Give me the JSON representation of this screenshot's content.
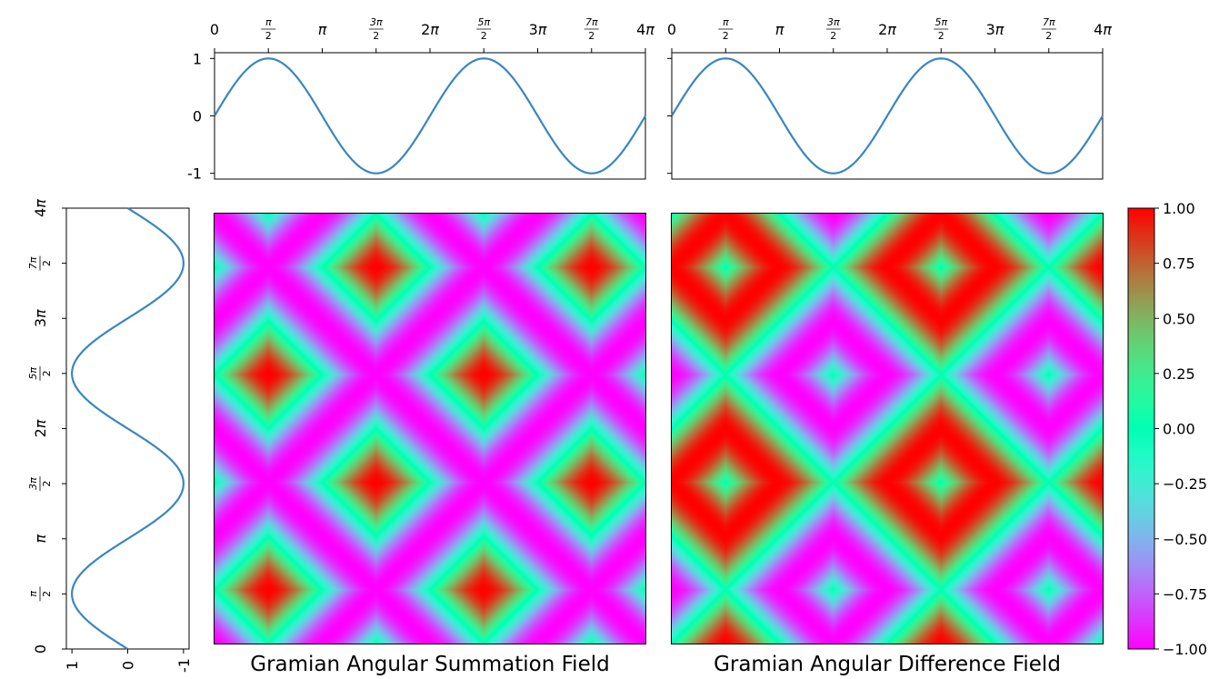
{
  "figure": {
    "colormap": "rainbow",
    "line_color": "#3a86be"
  },
  "chart_data": [
    {
      "type": "line",
      "panel": "top-left",
      "title": "",
      "function": "sin",
      "x_range": [
        0,
        12.566
      ],
      "ylim": [
        -1.1,
        1.1
      ],
      "x_ticks": [
        0,
        1.5708,
        3.1416,
        4.7124,
        6.2832,
        7.854,
        9.4248,
        10.9956,
        12.5664
      ],
      "x_tick_labels": [
        "0",
        "π/2",
        "π",
        "3π/2",
        "2π",
        "5π/2",
        "3π",
        "7π/2",
        "4π"
      ],
      "y_ticks": [
        1,
        0,
        -1
      ],
      "y_tick_labels": [
        "1",
        "0",
        "-1"
      ]
    },
    {
      "type": "line",
      "panel": "top-right",
      "title": "",
      "function": "sin",
      "x_range": [
        0,
        12.566
      ],
      "ylim": [
        -1.1,
        1.1
      ],
      "x_ticks": [
        0,
        1.5708,
        3.1416,
        4.7124,
        6.2832,
        7.854,
        9.4248,
        10.9956,
        12.5664
      ],
      "x_tick_labels": [
        "0",
        "π/2",
        "π",
        "3π/2",
        "2π",
        "5π/2",
        "3π",
        "7π/2",
        "4π"
      ],
      "y_ticks": [
        1,
        0,
        -1
      ]
    },
    {
      "type": "line",
      "panel": "left",
      "orientation": "vertical",
      "function": "sin",
      "y_range": [
        0,
        12.566
      ],
      "xlim": [
        1.1,
        -1.1
      ],
      "y_ticks": [
        0,
        1.5708,
        3.1416,
        4.7124,
        6.2832,
        7.854,
        9.4248,
        10.9956,
        12.5664
      ],
      "y_tick_labels": [
        "0",
        "π/2",
        "π",
        "3π/2",
        "2π",
        "5π/2",
        "3π",
        "7π/2",
        "4π"
      ],
      "x_ticks": [
        1,
        0,
        -1
      ],
      "x_tick_labels": [
        "1",
        "0",
        "-1"
      ]
    },
    {
      "type": "heatmap",
      "panel": "gasf",
      "title": "Gramian Angular Summation Field",
      "formula": "cos(phi_i + phi_j)",
      "domain": [
        0,
        12.566
      ]
    },
    {
      "type": "heatmap",
      "panel": "gadf",
      "title": "Gramian Angular Difference Field",
      "formula": "sin(phi_i - phi_j)",
      "domain": [
        0,
        12.566
      ]
    },
    {
      "type": "colorbar",
      "colormap": "rainbow",
      "range": [
        -1,
        1
      ],
      "ticks": [
        1.0,
        0.75,
        0.5,
        0.25,
        0.0,
        -0.25,
        -0.5,
        -0.75,
        -1.0
      ],
      "tick_labels": [
        "1.00",
        "0.75",
        "0.50",
        "0.25",
        "0.00",
        "−0.25",
        "−0.50",
        "−0.75",
        "−1.00"
      ]
    }
  ]
}
